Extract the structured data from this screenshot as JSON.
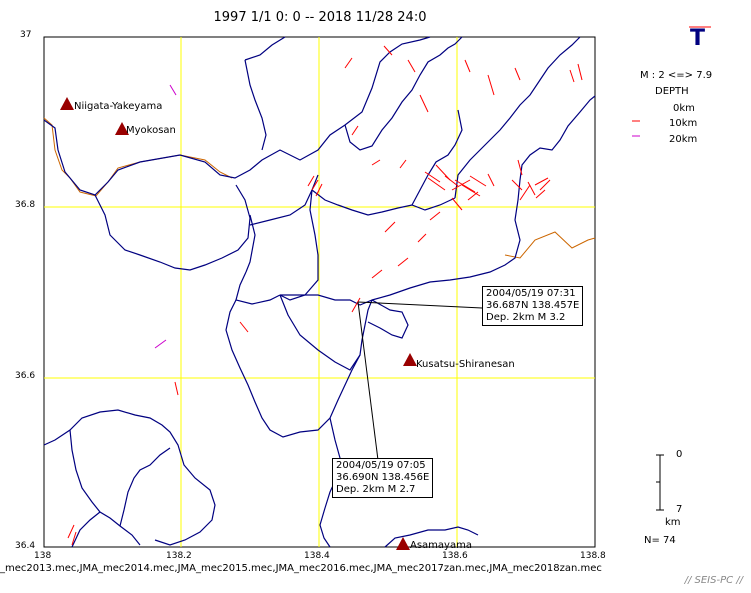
{
  "header": {
    "title": "1997 1/1 0: 0 -- 2018 11/28 24:0"
  },
  "axes": {
    "y_ticks": [
      "37",
      "36.8",
      "36.6",
      "36.4"
    ],
    "x_ticks": [
      "138",
      "138.2",
      "138.4",
      "138.6",
      "138.8"
    ]
  },
  "volcanoes": [
    {
      "name": "Niigata-Yakeyama",
      "lat": 36.92,
      "lon": 138.04
    },
    {
      "name": "Myokosan",
      "lat": 36.89,
      "lon": 138.12
    },
    {
      "name": "Kusatsu-Shiranesan",
      "lat": 36.62,
      "lon": 138.53
    },
    {
      "name": "Asamayama",
      "lat": 36.4,
      "lon": 138.52
    }
  ],
  "callouts": [
    {
      "line1": "2004/05/19 07:31",
      "line2": "36.687N   138.457E",
      "line3": "Dep. 2km     M 3.2"
    },
    {
      "line1": "2004/05/19 07:05",
      "line2": "36.690N   138.456E",
      "line3": "Dep. 2km     M 2.7"
    }
  ],
  "legend": {
    "symbol": "T",
    "magnitude": "M : 2 <=> 7.9",
    "depth_title": "DEPTH",
    "depths": [
      "0km",
      "10km",
      "20km"
    ],
    "depth_colors": [
      "#ff0000",
      "#ff0000",
      "#cc00cc"
    ],
    "scale_top": "0",
    "scale_bottom": "7",
    "scale_unit": "km",
    "count": "N= 74"
  },
  "files": "_mec2013.mec,JMA_mec2014.mec,JMA_mec2015.mec,JMA_mec2016.mec,JMA_mec2017zan.mec,JMA_mec2018zan.mec",
  "footer": "// SEIS-PC //",
  "colors": {
    "grid": "#ffff00",
    "boundary": "#000080",
    "coast": "#cc6600",
    "mech": "#ff0000",
    "deep": "#cc00cc",
    "volcano": "#990000"
  }
}
